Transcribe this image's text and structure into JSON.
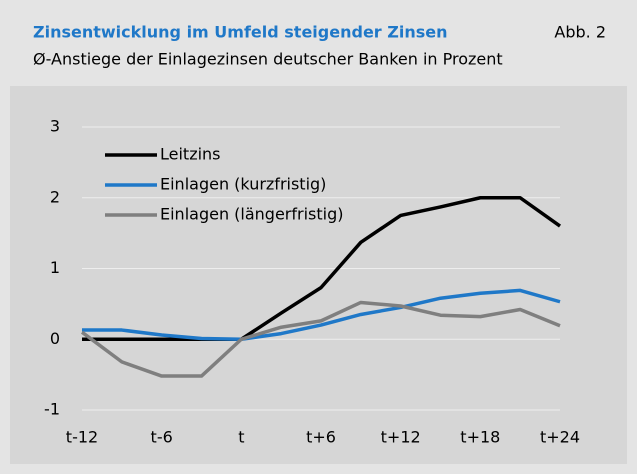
{
  "chart_data": {
    "type": "line",
    "title": "Zinsentwicklung im Umfeld steigender Zinsen",
    "figure_label": "Abb. 2",
    "subtitle": "Ø-Anstiege der Einlagezinsen deutscher Banken in Prozent",
    "categories": [
      "t-12",
      null,
      "t-6",
      null,
      "t",
      null,
      "t+6",
      null,
      "t+12",
      null,
      "t+18",
      null,
      "t+24"
    ],
    "series": [
      {
        "name": "Leitzins",
        "color": "#000000",
        "values": [
          0,
          0,
          0,
          0,
          0,
          0.37,
          0.73,
          1.37,
          1.75,
          1.87,
          2.0,
          2.0,
          1.6
        ]
      },
      {
        "name": "Einlagen (kurzfristig)",
        "color": "#1f78c8",
        "values": [
          0.13,
          0.13,
          0.06,
          0.01,
          0,
          0.08,
          0.2,
          0.35,
          0.45,
          0.58,
          0.65,
          0.69,
          0.53
        ]
      },
      {
        "name": "Einlagen (längerfristig)",
        "color": "#7f7f7f",
        "values": [
          0.1,
          -0.32,
          -0.52,
          -0.52,
          0,
          0.17,
          0.26,
          0.52,
          0.47,
          0.34,
          0.32,
          0.42,
          0.19
        ]
      }
    ],
    "ylim": [
      -1,
      3
    ],
    "yticks": [
      -1,
      0,
      1,
      2,
      3
    ],
    "grid": true,
    "legend": "upper left"
  }
}
